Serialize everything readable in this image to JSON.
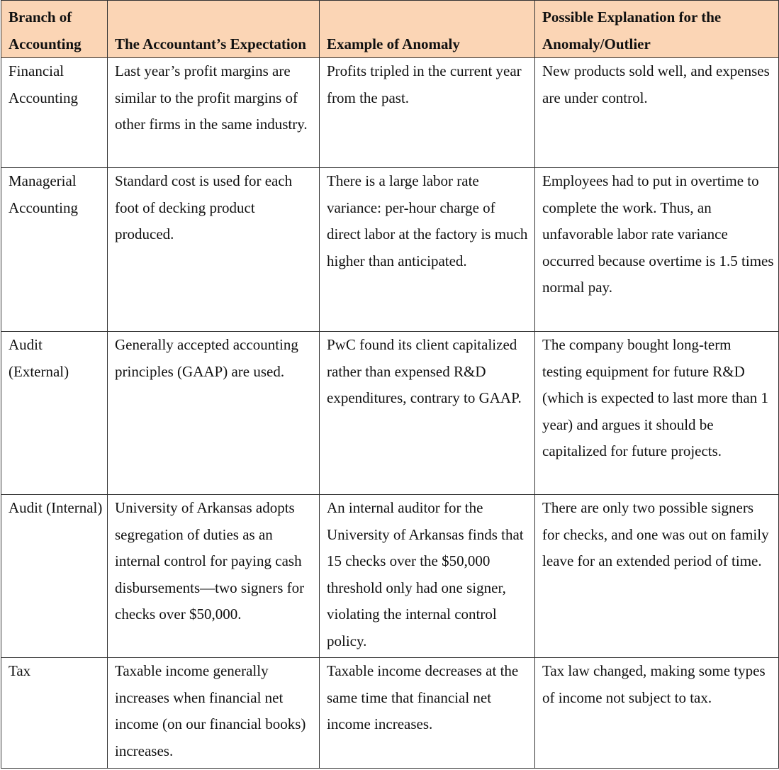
{
  "table": {
    "header": [
      "Branch of Accounting",
      "The Accountant’s Expectation",
      "Example of Anomaly",
      "Possible Explanation for the Anomaly/Outlier"
    ],
    "rows": [
      [
        "Financial Accounting",
        "Last year’s profit margins are similar to the profit margins of other firms in the same industry.",
        "Profits tripled in the current year from the past.",
        "New products sold well, and expenses are under control."
      ],
      [
        "Managerial Accounting",
        "Standard cost is used for each foot of decking product produced.",
        "There is a large labor rate variance: per-hour charge of direct labor at the factory is much higher than anticipated.",
        "Employees had to put in overtime to complete the work. Thus, an unfavorable labor rate variance occurred because overtime is 1.5 times normal pay."
      ],
      [
        "Audit (External)",
        "Generally accepted accounting principles (GAAP) are used.",
        "PwC found its client capitalized rather than expensed R&D expenditures, contrary to GAAP.",
        "The company bought long-term testing equipment for future R&D (which is expected to last more than 1 year) and argues it should be capitalized for future projects."
      ],
      [
        "Audit (Internal)",
        "University of Arkansas adopts segregation of duties as an internal control for paying cash disbursements—two signers for checks over $50,000.",
        "An internal auditor for the University of Arkansas finds that 15 checks over the $50,000 threshold only had one signer, violating the internal control policy.",
        "There are only two possible signers for checks, and one was out on family leave for an extended period of time."
      ],
      [
        "Tax",
        "Taxable income generally increases when financial net income (on our financial books) increases.",
        "Taxable income decreases at the same time that financial net income increases.",
        "Tax law changed, making some types of income not subject to tax."
      ]
    ]
  }
}
